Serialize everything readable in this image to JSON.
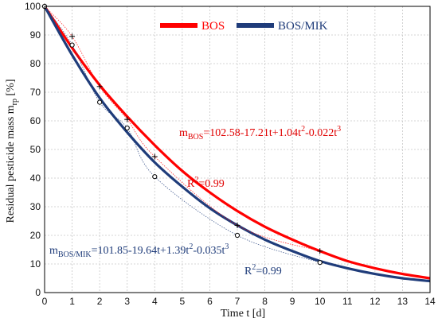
{
  "chart_data": {
    "type": "line",
    "xlabel": "Time t [d]",
    "ylabel": "Residual pesticide mass m",
    "ylabel_sub": "rp",
    "ylabel_unit": " [%]",
    "xlim": [
      0,
      14
    ],
    "ylim": [
      0,
      100
    ],
    "xticks": [
      0,
      1,
      2,
      3,
      4,
      5,
      6,
      7,
      8,
      9,
      10,
      11,
      12,
      13,
      14
    ],
    "yticks": [
      0,
      10,
      20,
      30,
      40,
      50,
      60,
      70,
      80,
      90,
      100
    ],
    "grid": true,
    "legend_position": "top-center",
    "series": [
      {
        "name": "BOS",
        "color": "#ff0000",
        "marker": "plus",
        "x": [
          0,
          1,
          2,
          3,
          4,
          7,
          10
        ],
        "y": [
          100,
          89.5,
          72,
          60.5,
          47.5,
          23.5,
          14.5
        ],
        "fit": {
          "x": [
            0,
            1,
            2,
            3,
            4,
            5,
            6,
            7,
            8,
            9,
            10,
            11,
            12,
            13,
            14
          ],
          "y": [
            100,
            85.5,
            72.5,
            61.5,
            51.5,
            42.5,
            35,
            28.5,
            23,
            18.5,
            14.5,
            11,
            8.5,
            6.5,
            5
          ]
        }
      },
      {
        "name": "BOS/MIK",
        "color": "#1f3c7a",
        "marker": "circle",
        "x": [
          0,
          1,
          2,
          3,
          4,
          7,
          10
        ],
        "y": [
          100,
          86.5,
          66.5,
          57.5,
          40.5,
          20,
          10.5
        ],
        "fit": {
          "x": [
            0,
            1,
            2,
            3,
            4,
            5,
            6,
            7,
            8,
            9,
            10,
            11,
            12,
            13,
            14
          ],
          "y": [
            100,
            83,
            68,
            56,
            45.5,
            37,
            29.5,
            23.5,
            18.5,
            14.5,
            11,
            8.5,
            6.5,
            5,
            4
          ]
        }
      }
    ],
    "annotations": {
      "bos_eq_prefix": "m",
      "bos_eq_sub": "BOS",
      "bos_eq_rest": "=102.58-17.21t+1.04t",
      "bos_eq_sup1": "2",
      "bos_eq_mid": "-0.022t",
      "bos_eq_sup2": "3",
      "bos_r2_prefix": "R",
      "bos_r2_sup": "2",
      "bos_r2_rest": "=0.99",
      "mik_eq_prefix": "m",
      "mik_eq_sub": "BOS/MIK",
      "mik_eq_rest": "=101.85-19.64t+1.39t",
      "mik_eq_sup1": "2",
      "mik_eq_mid": "-0.035t",
      "mik_eq_sup2": "3",
      "mik_r2_prefix": "R",
      "mik_r2_sup": "2",
      "mik_r2_rest": "=0.99"
    }
  }
}
